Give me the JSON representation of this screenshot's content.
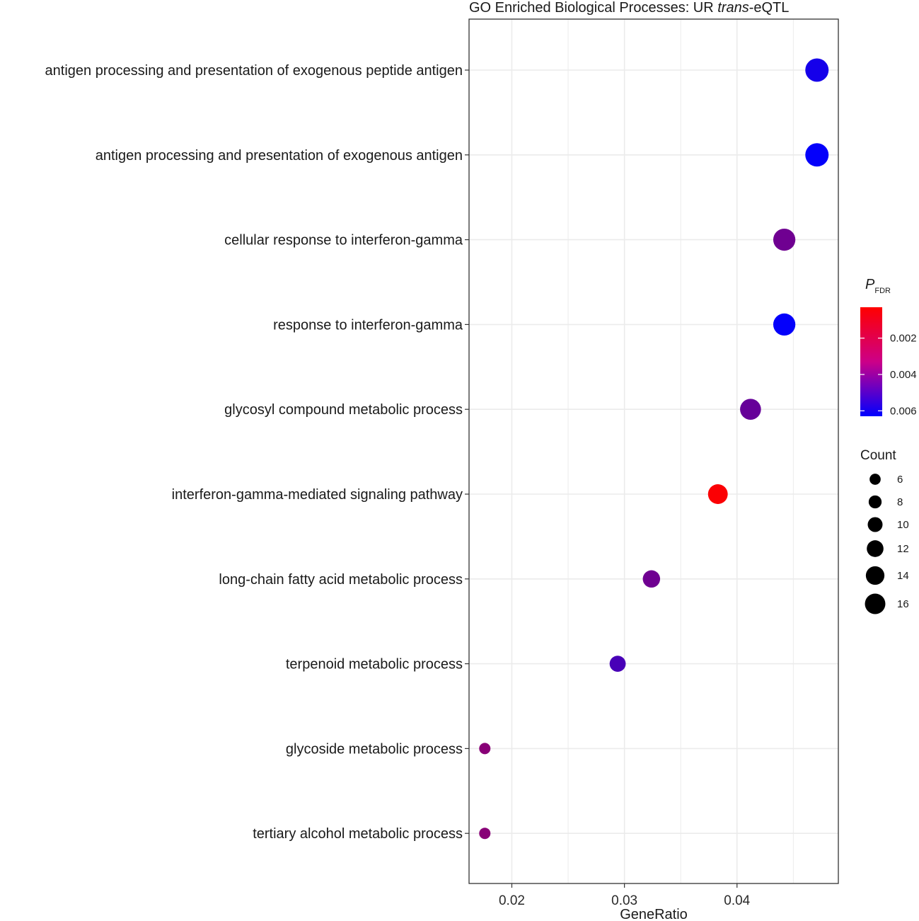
{
  "chart_data": {
    "type": "scatter",
    "title_parts": [
      "GO Enriched Biological Processes: UR ",
      "trans",
      "-eQTL"
    ],
    "xlabel": "GeneRatio",
    "ylabel": "",
    "xlim": [
      0.0162,
      0.049
    ],
    "x_ticks": [
      0.02,
      0.03,
      0.04
    ],
    "x_tick_labels": [
      "0.02",
      "0.03",
      "0.04"
    ],
    "grid": true,
    "categories": [
      "antigen processing and presentation of exogenous peptide antigen",
      "antigen processing and presentation of exogenous antigen",
      "cellular response to interferon-gamma",
      "response to interferon-gamma",
      "glycosyl compound metabolic process",
      "interferon-gamma-mediated signaling pathway",
      "long-chain fatty acid metabolic process",
      "terpenoid metabolic process",
      "glycoside metabolic process",
      "tertiary alcohol metabolic process"
    ],
    "gene_ratio": [
      0.0471,
      0.0471,
      0.0442,
      0.0442,
      0.0412,
      0.0383,
      0.0324,
      0.0294,
      0.0176,
      0.0176
    ],
    "count": [
      16,
      16,
      15,
      15,
      14,
      13,
      11,
      10,
      6,
      6
    ],
    "p_fdr": [
      0.0058,
      0.0062,
      0.0037,
      0.0062,
      0.0039,
      0.0004,
      0.0037,
      0.0046,
      0.0031,
      0.0031
    ],
    "color_legend": {
      "title_main": "P",
      "title_sub": "FDR",
      "range": [
        0.0003,
        0.0063
      ],
      "ticks": [
        0.002,
        0.004,
        0.006
      ],
      "tick_labels": [
        "0.002",
        "0.004",
        "0.006"
      ],
      "low_color": "#ff0000",
      "high_color": "#0000ff"
    },
    "size_legend": {
      "title": "Count",
      "values": [
        6,
        8,
        10,
        12,
        14,
        16
      ],
      "labels": [
        "6",
        "8",
        "10",
        "12",
        "14",
        "16"
      ]
    },
    "panel_border_color": "#333333",
    "grid_color": "#ebebeb"
  }
}
